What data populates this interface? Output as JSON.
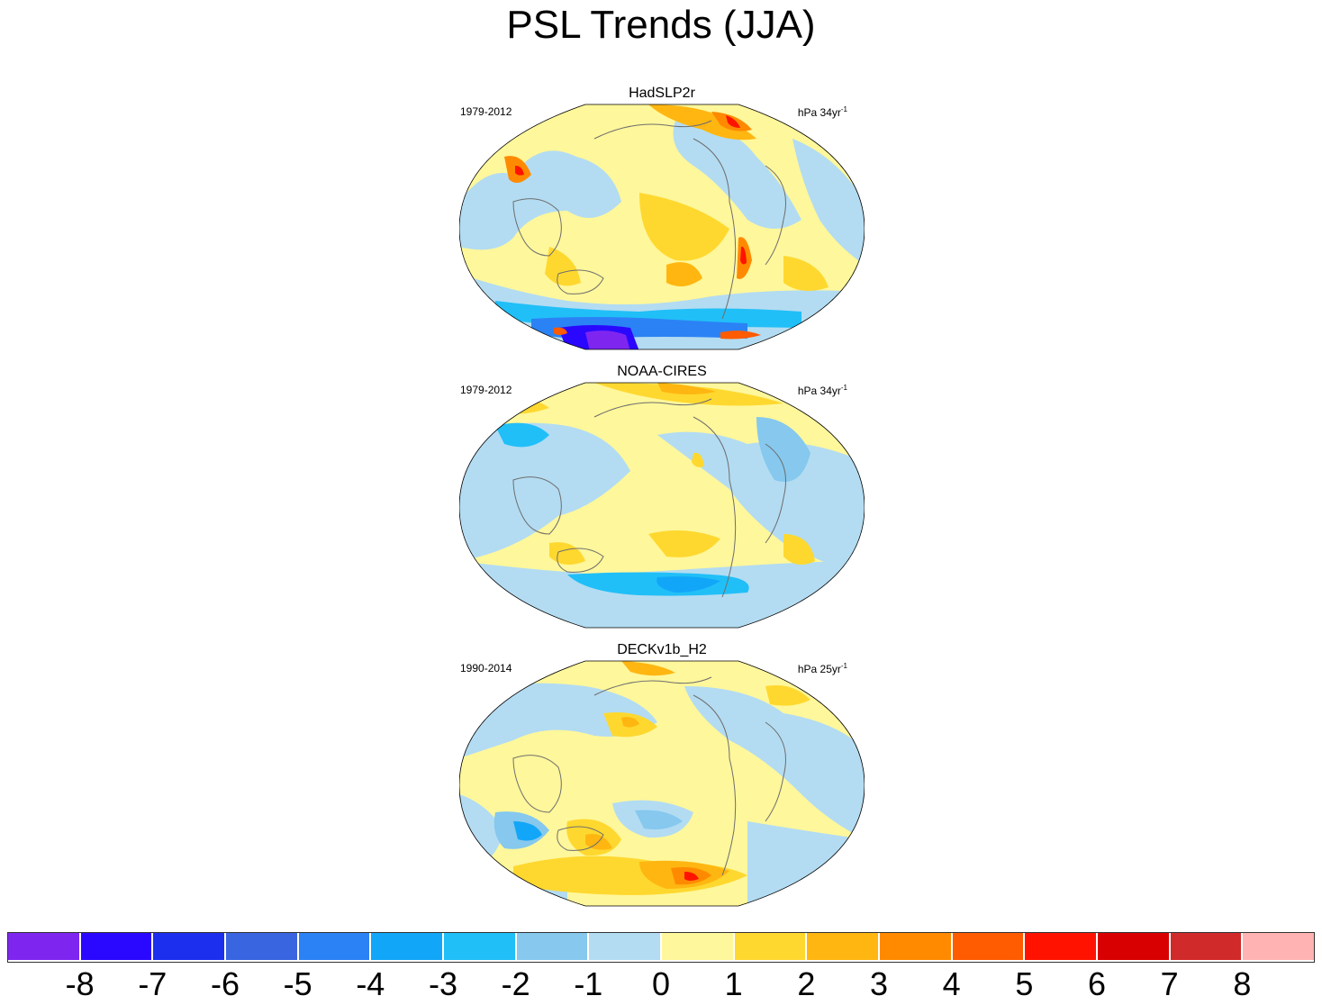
{
  "title": "PSL Trends (JJA)",
  "panels": [
    {
      "name": "HadSLP2r",
      "period": "1979-2012",
      "units": "hPa 34yr",
      "units_exponent": "-1"
    },
    {
      "name": "NOAA-CIRES",
      "period": "1979-2012",
      "units": "hPa 34yr",
      "units_exponent": "-1"
    },
    {
      "name": "DECKv1b_H2",
      "period": "1990-2014",
      "units": "hPa 25yr",
      "units_exponent": "-1"
    }
  ],
  "colorbar": {
    "labels": [
      "-8",
      "-7",
      "-6",
      "-5",
      "-4",
      "-3",
      "-2",
      "-1",
      "0",
      "1",
      "2",
      "3",
      "4",
      "5",
      "6",
      "7",
      "8"
    ],
    "colors": [
      "#7e26f0",
      "#2a08ff",
      "#1c2fee",
      "#3965e0",
      "#2b82f5",
      "#12a6f8",
      "#21bff7",
      "#86c8ee",
      "#b3dcf2",
      "#fff79b",
      "#ffd82f",
      "#ffb611",
      "#ff8a00",
      "#ff5b00",
      "#ff1300",
      "#d80000",
      "#d12a2a",
      "#ffb3b3"
    ]
  },
  "map_colors": {
    "ocean_background": "#fff79b",
    "coastline": "#6e6e6e"
  }
}
